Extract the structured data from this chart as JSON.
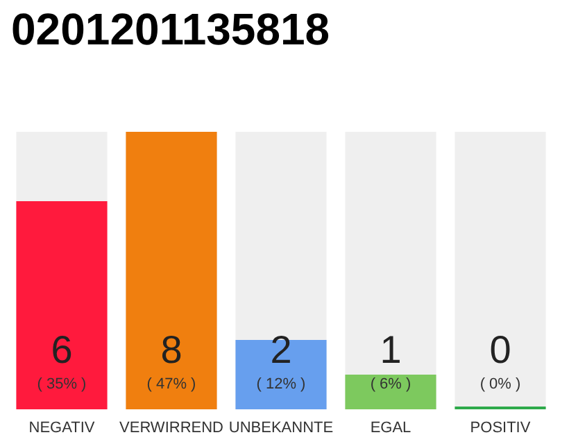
{
  "chart_data": {
    "type": "bar",
    "title": "0201201135818",
    "categories": [
      "NEGATIV",
      "VERWIRREND",
      "UNBEKANNTE",
      "EGAL",
      "POSITIV"
    ],
    "values": [
      6,
      8,
      2,
      1,
      0
    ],
    "value_labels": [
      "6\n( 35% )",
      "8\n( 47% )",
      "2\n( 12% )",
      "1\n( 6% )",
      "0\n( 0% )"
    ],
    "colors": [
      "#ff1a3d",
      "#f07f0f",
      "#679fee",
      "#7dc95e",
      "#2eaa4a"
    ],
    "tick_labels": "x"
  }
}
